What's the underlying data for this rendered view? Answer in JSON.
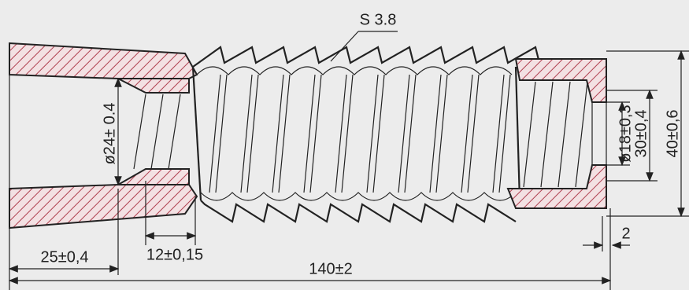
{
  "labels": {
    "thread": "S 3.8",
    "bore_left": "ø24± 0.4",
    "bore_right": "ø18±0,3",
    "outer_right": "30±0,4",
    "overall_height": "40±0,6",
    "left_length": "25±0,4",
    "thread_length": "12±0,15",
    "overall_length": "140±2",
    "gap": "2"
  }
}
